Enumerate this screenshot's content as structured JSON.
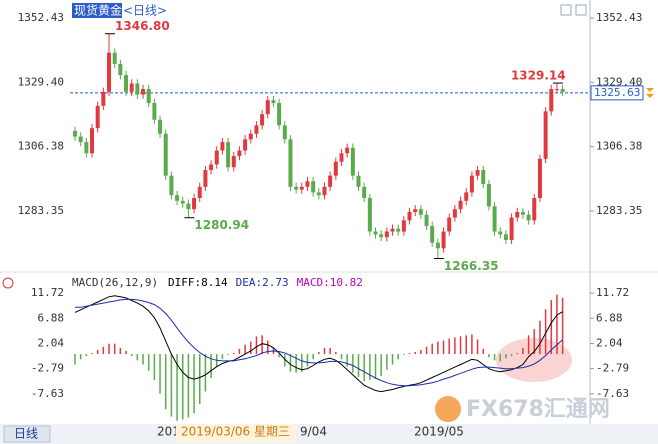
{
  "chart_data": {
    "type": "candlestick",
    "title": "现货黄金",
    "period": "<日线>",
    "ylim": [
      1262.23,
      1357.08
    ],
    "yticks": [
      1352.43,
      {
        "value": 1329.4,
        "label": "1329.40"
      },
      1306.38,
      1283.35
    ],
    "last_price": 1325.63,
    "up_color": "#e0393e",
    "down_color": "#5aab4c",
    "open": [
      1312,
      1310,
      1308,
      1304,
      1313,
      1321,
      1326,
      1340,
      1336,
      1332,
      1326,
      1329,
      1325,
      1327,
      1322,
      1316,
      1311,
      1296,
      1289,
      1287,
      1286,
      1284,
      1288,
      1292,
      1298,
      1300,
      1305,
      1308,
      1299,
      1303,
      1305,
      1309,
      1311,
      1314,
      1318,
      1323,
      1322,
      1314,
      1309,
      1292,
      1291,
      1292,
      1294,
      1290,
      1289,
      1292,
      1296,
      1301,
      1304,
      1306,
      1296,
      1292,
      1288,
      1276,
      1275,
      1274,
      1276,
      1277,
      1276,
      1280,
      1283,
      1284,
      1282,
      1278,
      1272,
      1270,
      1276,
      1281,
      1284,
      1287,
      1290,
      1296,
      1298,
      1293,
      1285,
      1276,
      1275,
      1273,
      1281,
      1283,
      1282,
      1280,
      1288,
      1302,
      1319,
      1327,
      1327
    ],
    "high": [
      1313.5,
      1311.5,
      1309.5,
      1314.5,
      1322.5,
      1327.5,
      1346.8,
      1341.5,
      1337.5,
      1333.5,
      1330.5,
      1330.5,
      1328.5,
      1328.5,
      1323.5,
      1317.5,
      1312.5,
      1297.5,
      1290.5,
      1288.5,
      1287.5,
      1289.5,
      1293.5,
      1299.5,
      1301.5,
      1306.5,
      1309.5,
      1309.5,
      1304.5,
      1306.5,
      1310.5,
      1312.5,
      1315.5,
      1319.5,
      1324.5,
      1324.5,
      1323.5,
      1315.5,
      1310.5,
      1293.5,
      1293.5,
      1295.5,
      1295.5,
      1291.5,
      1293.5,
      1297.5,
      1302.5,
      1305.5,
      1307.5,
      1307.5,
      1297.5,
      1293.5,
      1289.5,
      1277.5,
      1276.5,
      1277.5,
      1278.5,
      1278.5,
      1281.5,
      1284.5,
      1285.5,
      1285.5,
      1283.5,
      1279.5,
      1273.5,
      1277.5,
      1282.5,
      1285.5,
      1288.5,
      1291.5,
      1297.5,
      1299.5,
      1299.5,
      1294.5,
      1286.5,
      1277.5,
      1276.5,
      1282.5,
      1284.5,
      1284.5,
      1283.5,
      1289.5,
      1303.5,
      1320.5,
      1328.5,
      1329.14,
      1328.5
    ],
    "low": [
      1308.5,
      1306.5,
      1302.5,
      1302.5,
      1311.5,
      1319.5,
      1324.5,
      1334.5,
      1330.5,
      1324.5,
      1324.5,
      1323.5,
      1323.5,
      1320.5,
      1314.5,
      1309.5,
      1294.5,
      1287.5,
      1285.5,
      1284.5,
      1280.94,
      1282.5,
      1286.5,
      1290.5,
      1296.5,
      1298.5,
      1303.5,
      1297.5,
      1297.5,
      1301.5,
      1303.5,
      1307.5,
      1309.5,
      1312.5,
      1316.5,
      1320.5,
      1312.5,
      1307.5,
      1290.5,
      1289.5,
      1289.5,
      1290.5,
      1288.5,
      1287.5,
      1287.5,
      1290.5,
      1294.5,
      1299.5,
      1302.5,
      1294.5,
      1290.5,
      1286.5,
      1274.5,
      1273.5,
      1272.5,
      1272.5,
      1274.5,
      1274.5,
      1274.5,
      1278.5,
      1281.5,
      1280.5,
      1276.5,
      1270.5,
      1266.35,
      1268.5,
      1274.5,
      1279.5,
      1282.5,
      1285.5,
      1288.5,
      1294.5,
      1291.5,
      1283.5,
      1274.5,
      1273.5,
      1271.5,
      1271.5,
      1279.5,
      1280.5,
      1278.5,
      1278.5,
      1286.5,
      1300.5,
      1317.5,
      1325.5,
      1324.5
    ],
    "close": [
      1310,
      1308,
      1304,
      1313,
      1321,
      1326,
      1340,
      1336,
      1332,
      1326,
      1329,
      1325,
      1327,
      1322,
      1316,
      1311,
      1296,
      1289,
      1287,
      1286,
      1284,
      1288,
      1292,
      1298,
      1300,
      1305,
      1308,
      1299,
      1303,
      1305,
      1309,
      1311,
      1314,
      1318,
      1323,
      1322,
      1314,
      1309,
      1292,
      1291,
      1292,
      1294,
      1290,
      1289,
      1292,
      1296,
      1301,
      1304,
      1306,
      1296,
      1292,
      1288,
      1276,
      1275,
      1274,
      1276,
      1277,
      1276,
      1280,
      1283,
      1284,
      1282,
      1278,
      1272,
      1270,
      1276,
      1281,
      1284,
      1287,
      1290,
      1296,
      1298,
      1293,
      1285,
      1276,
      1275,
      1273,
      1281,
      1283,
      1282,
      1280,
      1288,
      1302,
      1319,
      1327,
      1327,
      1326
    ],
    "annotations": [
      {
        "value": 1346.8,
        "label": "1346.80",
        "color": "#e0393e"
      },
      {
        "value": 1280.94,
        "label": "1280.94",
        "color": "#5aab4c"
      },
      {
        "value": 1266.35,
        "label": "1266.35",
        "color": "#5aab4c"
      },
      {
        "value": 1329.14,
        "label": "1329.14",
        "color": "#e0393e"
      }
    ],
    "macd": {
      "title": "MACD(26,12,9)",
      "legend": [
        {
          "label": "DIFF:",
          "value": 8.14,
          "color": "#000000"
        },
        {
          "label": "DEA:",
          "value": 2.73,
          "color": "#1c2fa8"
        },
        {
          "label": "MACD:",
          "value": 10.82,
          "color": "#c000c0"
        }
      ],
      "ylim": [
        -13.43,
        13.27
      ],
      "yticks": [
        11.72,
        6.88,
        2.04,
        -2.79,
        -7.63
      ],
      "diff": [
        8,
        8.5,
        9,
        9.5,
        10,
        10.5,
        11,
        11.2,
        11,
        10.8,
        10.3,
        9.8,
        9.2,
        8.3,
        7,
        5,
        2.5,
        0,
        -2,
        -3.5,
        -4.5,
        -4.8,
        -4.5,
        -4,
        -3.2,
        -2.4,
        -1.8,
        -1.4,
        -1.2,
        -0.6,
        0,
        0.6,
        1.4,
        2,
        1.8,
        1.2,
        0.2,
        -1,
        -2,
        -2.6,
        -3,
        -2.8,
        -2.2,
        -1.5,
        -1,
        -0.8,
        -1.2,
        -2,
        -3,
        -4,
        -5,
        -6,
        -6.5,
        -7,
        -7.2,
        -7,
        -6.8,
        -6.5,
        -6.2,
        -6,
        -5.8,
        -5.5,
        -5,
        -4.5,
        -4,
        -3.5,
        -3,
        -2.5,
        -2,
        -1.5,
        -1,
        -1.2,
        -2,
        -2.8,
        -3.2,
        -3.4,
        -3.2,
        -3,
        -2.6,
        -2,
        -0.5,
        0.5,
        2,
        4,
        6,
        7.5,
        8.14
      ],
      "dea": [
        9,
        9,
        9.2,
        9.4,
        9.6,
        9.8,
        10,
        10.2,
        10.4,
        10.5,
        10.5,
        10.4,
        10.2,
        9.9,
        9.5,
        8.8,
        7.8,
        6.5,
        5,
        3.6,
        2.3,
        1.2,
        0.3,
        -0.4,
        -0.9,
        -1.2,
        -1.3,
        -1.3,
        -1.3,
        -1.1,
        -0.9,
        -0.6,
        -0.3,
        0.2,
        0.5,
        0.6,
        0.5,
        0.2,
        -0.3,
        -0.8,
        -1.3,
        -1.6,
        -1.7,
        -1.7,
        -1.6,
        -1.4,
        -1.4,
        -1.5,
        -1.8,
        -2.2,
        -2.8,
        -3.4,
        -4,
        -4.6,
        -5.1,
        -5.5,
        -5.8,
        -6,
        -6.1,
        -6.1,
        -6,
        -5.9,
        -5.7,
        -5.5,
        -5.2,
        -4.8,
        -4.5,
        -4.1,
        -3.7,
        -3.3,
        -2.9,
        -2.6,
        -2.5,
        -2.5,
        -2.6,
        -2.7,
        -2.8,
        -2.8,
        -2.7,
        -2.6,
        -2.3,
        -1.9,
        -1.2,
        -0.3,
        0.8,
        1.8,
        2.73
      ],
      "hist": [
        -2,
        -1,
        -0.4,
        0.2,
        0.8,
        1.4,
        2,
        2,
        1.2,
        0.6,
        -0.4,
        -1.2,
        -2,
        -3.2,
        -5,
        -7.6,
        -10.6,
        -12,
        -12.8,
        -12.6,
        -12.2,
        -11.4,
        -9.6,
        -7.2,
        -4.6,
        -2.4,
        -1,
        -0.2,
        0.2,
        1,
        1.8,
        2.4,
        3.4,
        3.6,
        2.6,
        1.2,
        -0.6,
        -2.4,
        -3.4,
        -3.6,
        -3.4,
        -2.4,
        -1,
        0.4,
        1.2,
        1.2,
        0.4,
        -1,
        -2.4,
        -3.6,
        -4.4,
        -5.2,
        -5,
        -4.8,
        -4.2,
        -3,
        -2,
        -1,
        -0.2,
        0.2,
        0.4,
        0.8,
        1.4,
        2,
        2.4,
        2.6,
        3,
        3.2,
        3.4,
        3.6,
        3.8,
        2.8,
        1,
        -0.6,
        -1.2,
        -1.4,
        -0.8,
        -0.4,
        0.2,
        1.2,
        3.6,
        4.8,
        6.4,
        8.6,
        10.4,
        11.4,
        10.82
      ]
    },
    "x_labels": [
      "2019",
      "9/04",
      "2019/05"
    ],
    "cursor_date": "2019/03/06 星期三",
    "period_button": "日线",
    "watermark": "FX678汇通网"
  }
}
